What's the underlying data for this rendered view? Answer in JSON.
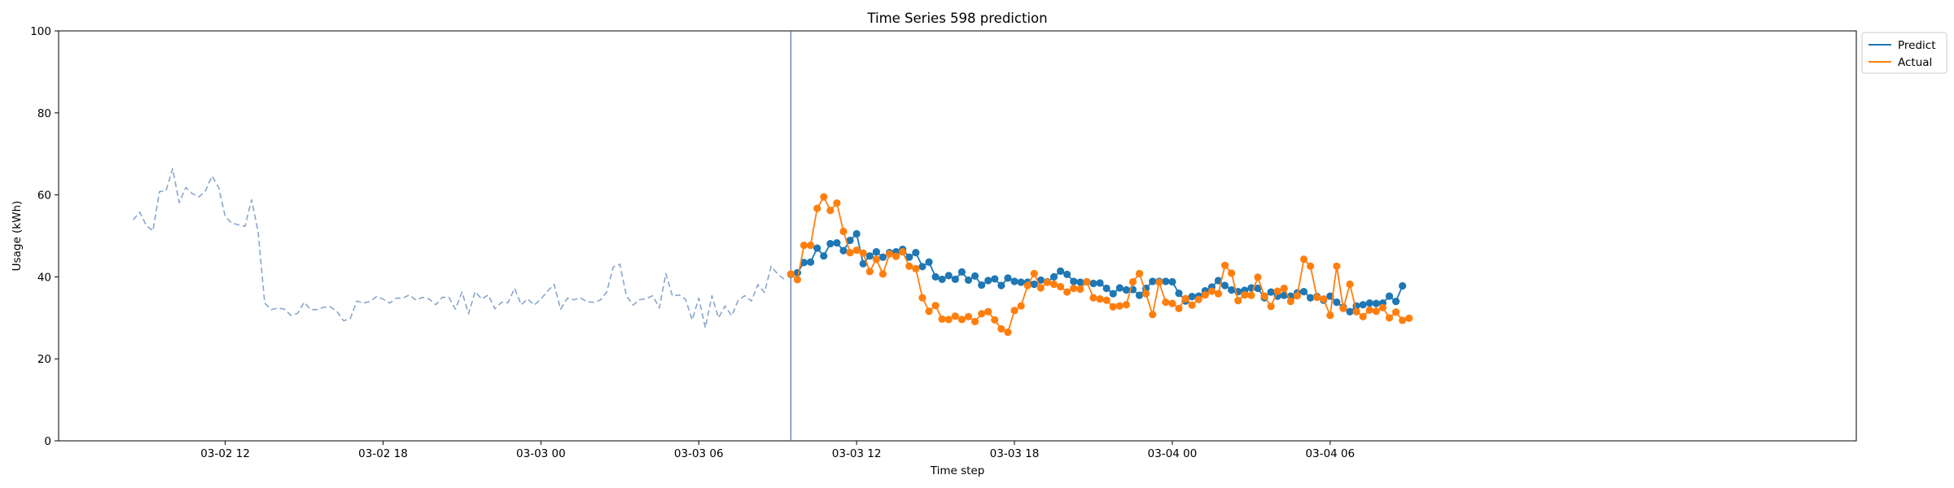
{
  "chart_data": {
    "type": "line",
    "title": "Time Series 598 prediction",
    "xlabel": "Time step",
    "ylabel": "Usage (kWh)",
    "ylim": [
      0,
      100
    ],
    "yticks": [
      0,
      20,
      40,
      60,
      80,
      100
    ],
    "xlim": [
      "2024-03-02 05:40",
      "2024-03-05 02:00"
    ],
    "xticks": [
      {
        "x": "2024-03-02 12:00",
        "label": "03-02 12"
      },
      {
        "x": "2024-03-02 18:00",
        "label": "03-02 18"
      },
      {
        "x": "2024-03-03 00:00",
        "label": "03-03 00"
      },
      {
        "x": "2024-03-03 06:00",
        "label": "03-03 06"
      },
      {
        "x": "2024-03-03 12:00",
        "label": "03-03 12"
      },
      {
        "x": "2024-03-03 18:00",
        "label": "03-03 18"
      },
      {
        "x": "2024-03-04 00:00",
        "label": "03-04 00"
      },
      {
        "x": "2024-03-04 06:00",
        "label": "03-04 06"
      }
    ],
    "vline": {
      "x": "2024-03-03 09:30",
      "color": "#4c72b0"
    },
    "legend_position": "outside top-right",
    "series": [
      {
        "name": "",
        "style": "dashed",
        "color": "#88a6cc",
        "x_start": "2024-03-02 08:30",
        "step_minutes": 15,
        "values": [
          53.9,
          55.8,
          52.5,
          51.2,
          60.8,
          61.0,
          66.4,
          58.1,
          61.8,
          60.3,
          59.5,
          61.0,
          64.6,
          61.8,
          54.7,
          53.1,
          52.7,
          52.3,
          58.8,
          51.0,
          33.6,
          32.0,
          32.4,
          32.1,
          30.6,
          31.1,
          33.8,
          32.0,
          32.0,
          32.6,
          32.7,
          31.5,
          29.3,
          29.8,
          34.1,
          33.6,
          34.0,
          35.2,
          34.6,
          33.6,
          34.8,
          34.8,
          35.6,
          34.3,
          35.0,
          34.6,
          33.2,
          35.0,
          35.0,
          32.1,
          36.3,
          31.0,
          36.4,
          34.6,
          35.6,
          32.2,
          33.8,
          33.7,
          37.2,
          33.2,
          34.6,
          33.1,
          34.6,
          36.5,
          38.2,
          32.1,
          34.8,
          34.4,
          34.9,
          33.9,
          33.8,
          34.3,
          36.3,
          42.4,
          43.1,
          35.4,
          33.1,
          34.4,
          34.7,
          35.4,
          32.4,
          40.8,
          35.3,
          35.6,
          34.5,
          29.5,
          34.8,
          27.6,
          35.4,
          30.0,
          32.9,
          30.5,
          34.3,
          35.4,
          34.1,
          38.1,
          36.2,
          42.6,
          40.7,
          39.4
        ]
      },
      {
        "name": "Predict",
        "color": "#1f77b4",
        "x_start": "2024-03-03 09:30",
        "step_minutes": 15,
        "values": [
          40.6,
          41.0,
          43.5,
          43.6,
          47.0,
          45.1,
          48.1,
          48.3,
          46.4,
          48.9,
          50.5,
          43.2,
          45.1,
          46.1,
          44.8,
          45.9,
          46.1,
          46.7,
          44.8,
          45.9,
          42.5,
          43.6,
          40.0,
          39.4,
          40.3,
          39.4,
          41.2,
          39.2,
          40.2,
          38.0,
          39.1,
          39.5,
          37.9,
          39.7,
          38.9,
          38.7,
          38.7,
          38.2,
          39.2,
          38.8,
          40.0,
          41.4,
          40.6,
          38.9,
          38.7,
          38.8,
          38.4,
          38.5,
          37.2,
          35.9,
          37.3,
          36.8,
          36.9,
          35.5,
          37.2,
          38.9,
          38.9,
          38.9,
          38.8,
          36.0,
          34.1,
          35.2,
          35.3,
          36.6,
          37.5,
          39.1,
          37.9,
          36.8,
          36.4,
          36.7,
          37.3,
          37.2,
          34.9,
          36.3,
          35.3,
          35.5,
          35.3,
          36.1,
          36.4,
          34.9,
          35.2,
          34.3,
          35.3,
          33.8,
          32.6,
          31.5,
          32.9,
          33.2,
          33.6,
          33.5,
          33.6,
          35.3,
          34.0,
          37.8
        ]
      },
      {
        "name": "Actual",
        "color": "#ff7f0e",
        "x_start": "2024-03-03 09:30",
        "step_minutes": 15,
        "values": [
          40.7,
          39.3,
          47.7,
          47.7,
          56.7,
          59.5,
          56.2,
          58.0,
          51.1,
          45.9,
          46.5,
          45.8,
          41.3,
          44.3,
          40.7,
          45.6,
          45.0,
          46.1,
          42.6,
          42.0,
          34.9,
          31.6,
          33.0,
          29.7,
          29.6,
          30.4,
          29.6,
          30.3,
          29.1,
          31.0,
          31.5,
          29.5,
          27.3,
          26.5,
          31.8,
          32.9,
          37.9,
          40.8,
          37.3,
          38.7,
          38.2,
          37.6,
          36.3,
          37.2,
          37.0,
          38.8,
          34.9,
          34.6,
          34.3,
          32.7,
          32.9,
          33.2,
          38.8,
          40.8,
          35.9,
          30.8,
          38.7,
          33.8,
          33.5,
          32.3,
          34.7,
          33.1,
          34.5,
          35.6,
          36.5,
          35.9,
          42.8,
          40.9,
          34.2,
          35.6,
          35.5,
          39.9,
          35.3,
          32.8,
          36.5,
          37.2,
          34.0,
          35.4,
          44.3,
          42.6,
          35.0,
          34.6,
          30.6,
          42.6,
          32.3,
          38.2,
          31.5,
          30.3,
          31.9,
          31.6,
          32.5,
          30.0,
          31.4,
          29.4,
          29.9
        ]
      }
    ]
  }
}
